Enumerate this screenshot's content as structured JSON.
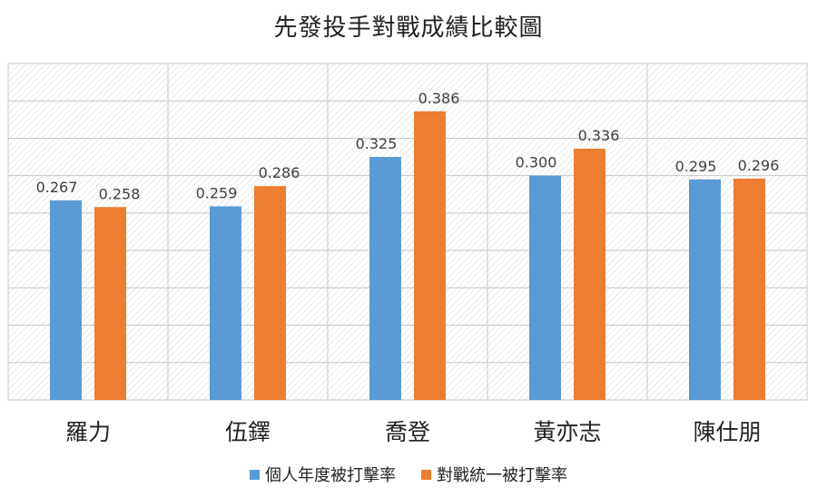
{
  "chart_data": {
    "type": "bar",
    "title": "先發投手對戰成績比較圖",
    "categories": [
      "羅力",
      "伍鐸",
      "喬登",
      "黃亦志",
      "陳仕朋"
    ],
    "series": [
      {
        "name": "個人年度被打擊率",
        "color": "#5b9bd5",
        "values": [
          0.267,
          0.259,
          0.325,
          0.3,
          0.295
        ]
      },
      {
        "name": "對戰統一被打擊率",
        "color": "#ed7d31",
        "values": [
          0.258,
          0.286,
          0.386,
          0.336,
          0.296
        ]
      }
    ],
    "value_labels": [
      [
        "0.267",
        "0.259",
        "0.325",
        "0.300",
        "0.295"
      ],
      [
        "0.258",
        "0.286",
        "0.386",
        "0.336",
        "0.296"
      ]
    ],
    "ylim": [
      0,
      0.45
    ],
    "grid": true,
    "legend_position": "bottom"
  }
}
